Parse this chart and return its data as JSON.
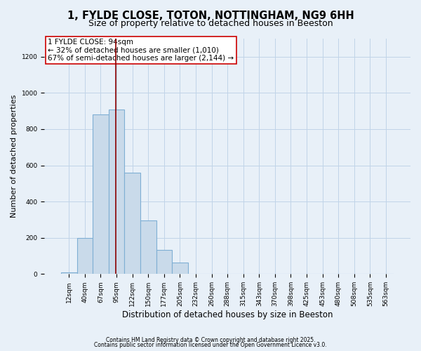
{
  "title1": "1, FYLDE CLOSE, TOTON, NOTTINGHAM, NG9 6HH",
  "title2": "Size of property relative to detached houses in Beeston",
  "xlabel": "Distribution of detached houses by size in Beeston",
  "ylabel": "Number of detached properties",
  "categories": [
    "12sqm",
    "40sqm",
    "67sqm",
    "95sqm",
    "122sqm",
    "150sqm",
    "177sqm",
    "205sqm",
    "232sqm",
    "260sqm",
    "288sqm",
    "315sqm",
    "343sqm",
    "370sqm",
    "398sqm",
    "425sqm",
    "453sqm",
    "480sqm",
    "508sqm",
    "535sqm",
    "563sqm"
  ],
  "values": [
    10,
    200,
    880,
    910,
    560,
    295,
    135,
    65,
    0,
    0,
    0,
    0,
    0,
    0,
    0,
    0,
    0,
    0,
    0,
    0,
    0
  ],
  "bar_color": "#c9daea",
  "bar_edge_color": "#7fafd4",
  "bar_linewidth": 0.8,
  "grid_color": "#c0d4e8",
  "background_color": "#e8f0f8",
  "plot_bg_color": "#e8f0f8",
  "vline_color": "#8b0000",
  "vline_linewidth": 1.2,
  "annotation_text": "1 FYLDE CLOSE: 94sqm\n← 32% of detached houses are smaller (1,010)\n67% of semi-detached houses are larger (2,144) →",
  "annotation_box_color": "#cc0000",
  "annotation_fontsize": 7.5,
  "ylim": [
    0,
    1300
  ],
  "yticks": [
    0,
    200,
    400,
    600,
    800,
    1000,
    1200
  ],
  "footer1": "Contains HM Land Registry data © Crown copyright and database right 2025.",
  "footer2": "Contains public sector information licensed under the Open Government Licence v3.0.",
  "title_fontsize": 10.5,
  "subtitle_fontsize": 9,
  "xlabel_fontsize": 8.5,
  "ylabel_fontsize": 8,
  "tick_fontsize": 6.5,
  "footer_fontsize": 5.5
}
